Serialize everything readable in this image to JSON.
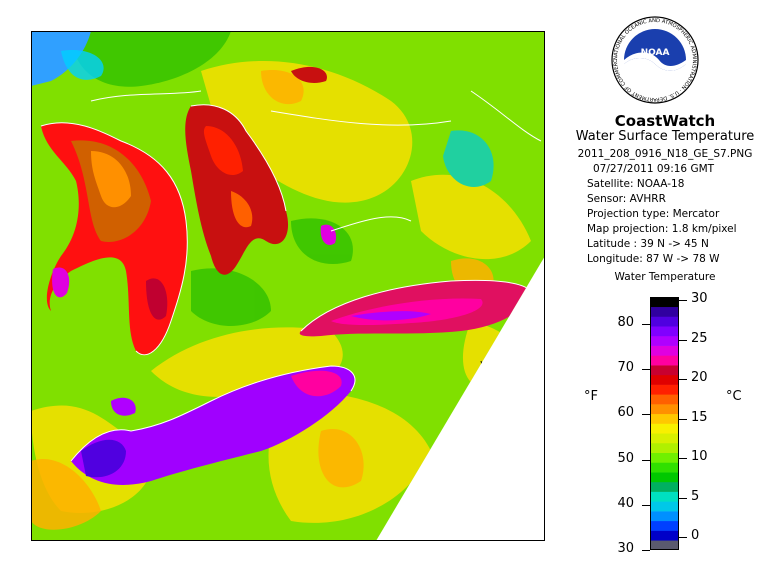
{
  "header": {
    "brand": "CoastWatch",
    "product": "Water Surface Temperature",
    "filename": "2011_208_0916_N18_GE_S7.PNG",
    "datetime": "07/27/2011   09:16 GMT",
    "satellite": "Satellite: NOAA-18",
    "sensor": "Sensor: AVHRR",
    "projection_type": "Projection type:  Mercator",
    "map_projection": "Map projection: 1.8 km/pixel",
    "latitude": "Latitude : 39 N -> 45 N",
    "longitude": "Longitude: 87 W -> 78 W"
  },
  "logo": {
    "text": "NOAA",
    "ring_text": "NATIONAL OCEANIC AND ATMOSPHERIC ADMINISTRATION · U.S. DEPARTMENT OF COMMERCE"
  },
  "legend": {
    "title": "Water Temperature",
    "unit_f": "°F",
    "unit_c": "°C",
    "f_ticks": [
      "80",
      "70",
      "60",
      "50",
      "40",
      "30"
    ],
    "c_ticks": [
      "30",
      "25",
      "20",
      "15",
      "10",
      "5",
      "0"
    ],
    "colors": [
      "#5a5a6e",
      "#0000c8",
      "#0040ff",
      "#0090ff",
      "#00c8e8",
      "#00e0c0",
      "#00b060",
      "#00c800",
      "#30e000",
      "#70f000",
      "#b0f000",
      "#d8f000",
      "#f8f000",
      "#ffc800",
      "#ff9000",
      "#ff6000",
      "#ff2000",
      "#e00000",
      "#c80030",
      "#ff00a0",
      "#e000e0",
      "#b000ff",
      "#8000ff",
      "#5000e0",
      "#3000a0",
      "#000000"
    ]
  },
  "map": {
    "type": "sea surface temperature satellite image",
    "region": "Great Lakes",
    "colors": {
      "land_low": "#78e000",
      "land_mid": "#f0e000",
      "huron": "#c81010",
      "erie": "#a000ff",
      "ontario": "#e01060",
      "nodata": "#ffffff"
    }
  }
}
